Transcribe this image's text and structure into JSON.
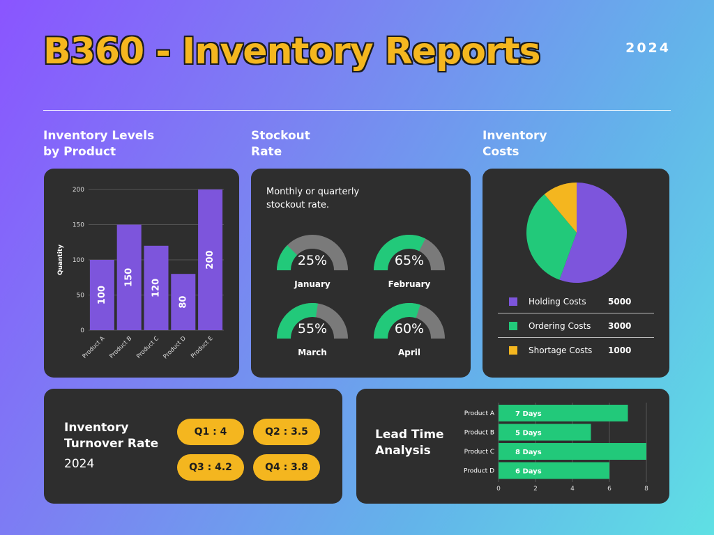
{
  "header": {
    "title": "B360 - Inventory Reports",
    "year": "2024"
  },
  "colors": {
    "purple": "#7d55dc",
    "green": "#22c97a",
    "yellow": "#f4b61f",
    "gray": "#7a7a7a",
    "card": "#2e2e2e"
  },
  "sections": {
    "levels": "Inventory Levels\nby Product",
    "stockout": "Stockout\nRate",
    "costs": "Inventory\nCosts"
  },
  "stockout": {
    "description": "Monthly or quarterly\nstockout rate."
  },
  "turnover": {
    "title": "Inventory\nTurnover Rate",
    "year": "2024"
  },
  "lead_time": {
    "title": "Lead Time\nAnalysis"
  },
  "chart_data": [
    {
      "type": "bar",
      "title": "Inventory Levels by Product",
      "ylabel": "Quantity",
      "categories": [
        "Product A",
        "Product B",
        "Product C",
        "Product D",
        "Product E"
      ],
      "values": [
        100,
        150,
        120,
        80,
        200
      ],
      "value_labels": [
        "100",
        "150",
        "120",
        "80",
        "200"
      ],
      "ylim": [
        0,
        200
      ],
      "yticks": [
        0,
        50,
        100,
        150,
        200
      ],
      "grid": true
    },
    {
      "type": "pie",
      "title": "Stockout Rate",
      "description": "Monthly or quarterly stockout rate.",
      "gauges": [
        {
          "label": "January",
          "value": 25,
          "display": "25%"
        },
        {
          "label": "February",
          "value": 65,
          "display": "65%"
        },
        {
          "label": "March",
          "value": 55,
          "display": "55%"
        },
        {
          "label": "April",
          "value": 60,
          "display": "60%"
        }
      ]
    },
    {
      "type": "pie",
      "title": "Inventory Costs",
      "slices": [
        {
          "name": "Holding Costs",
          "value": 5000,
          "display": "5000",
          "color": "#7d55dc"
        },
        {
          "name": "Ordering Costs",
          "value": 3000,
          "display": "3000",
          "color": "#22c97a"
        },
        {
          "name": "Shortage Costs",
          "value": 1000,
          "display": "1000",
          "color": "#f4b61f"
        }
      ]
    },
    {
      "type": "table",
      "title": "Inventory Turnover Rate",
      "rows": [
        {
          "quarter": "Q1",
          "value": 4,
          "display": "Q1 : 4"
        },
        {
          "quarter": "Q2",
          "value": 3.5,
          "display": "Q2 : 3.5"
        },
        {
          "quarter": "Q3",
          "value": 4.2,
          "display": "Q3 : 4.2"
        },
        {
          "quarter": "Q4",
          "value": 3.8,
          "display": "Q4 : 3.8"
        }
      ]
    },
    {
      "type": "bar",
      "orientation": "horizontal",
      "title": "Lead Time Analysis",
      "categories": [
        "Product A",
        "Product B",
        "Product C",
        "Product D"
      ],
      "values": [
        7,
        5,
        8,
        6
      ],
      "value_labels": [
        "7 Days",
        "5 Days",
        "8 Days",
        "6 Days"
      ],
      "xlim": [
        0,
        8
      ],
      "xticks": [
        0,
        2,
        4,
        6,
        8
      ],
      "grid": true
    }
  ]
}
